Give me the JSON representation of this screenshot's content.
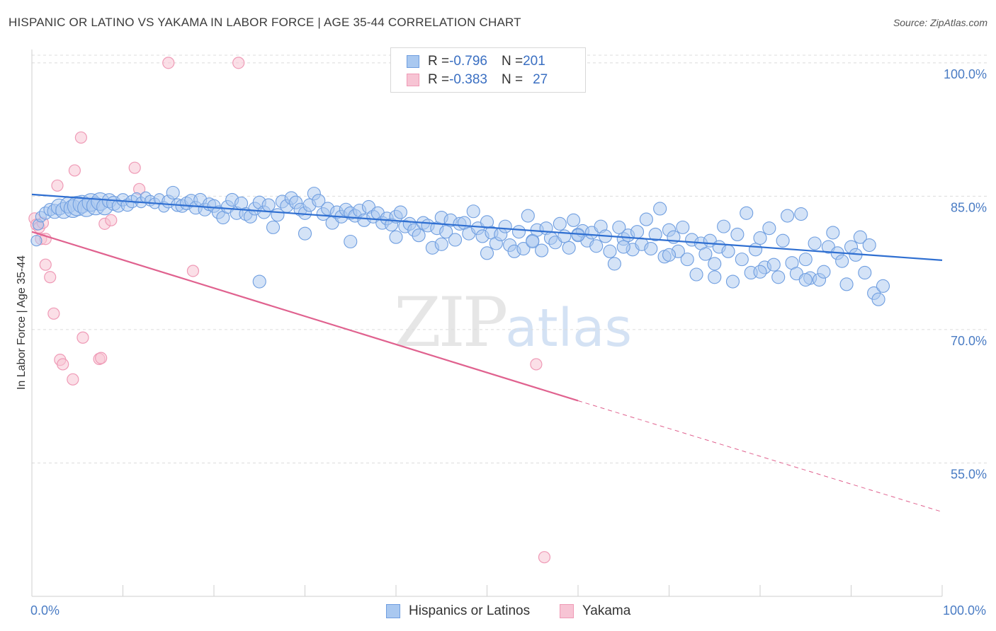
{
  "header": {
    "title": "HISPANIC OR LATINO VS YAKAMA IN LABOR FORCE | AGE 35-44 CORRELATION CHART",
    "source": "Source: ZipAtlas.com"
  },
  "watermark": {
    "zip": "ZIP",
    "atlas": "atlas"
  },
  "legend": {
    "rows": [
      {
        "r_label": "R = ",
        "r_value": "-0.796",
        "n_label": "N = ",
        "n_value": "201"
      },
      {
        "r_label": "R = ",
        "r_value": "-0.383",
        "n_label": "N = ",
        "n_value": "27"
      }
    ]
  },
  "bottom_legend": {
    "series1": "Hispanics or Latinos",
    "series2": "Yakama"
  },
  "colors": {
    "blue_fill": "#a9c8f0",
    "blue_stroke": "#6f9ee0",
    "blue_line": "#2f6fd1",
    "pink_fill": "#f7c4d4",
    "pink_stroke": "#ef9ab6",
    "pink_line": "#e0628f",
    "grid": "#dcdcdc",
    "tick": "#4a7cc4"
  },
  "chart_data": {
    "type": "scatter",
    "title": "HISPANIC OR LATINO VS YAKAMA IN LABOR FORCE | AGE 35-44 CORRELATION CHART",
    "xlabel": "",
    "ylabel": "In Labor Force | Age 35-44",
    "xlim": [
      0,
      100
    ],
    "ylim": [
      40,
      101.5
    ],
    "x_tick_labels": [
      "0.0%",
      "100.0%"
    ],
    "y_ticks": [
      55,
      70,
      85,
      100
    ],
    "y_tick_labels": [
      "55.0%",
      "70.0%",
      "85.0%",
      "100.0%"
    ],
    "grid": true,
    "legend_position": "top-center",
    "series": [
      {
        "name": "Hispanics or Latinos",
        "r": -0.796,
        "n": 201,
        "trend": {
          "x": [
            0,
            100
          ],
          "y": [
            85.2,
            77.8
          ]
        },
        "points": [
          [
            0.5,
            80.0
          ],
          [
            0.7,
            81.8
          ],
          [
            1.0,
            82.7
          ],
          [
            1.5,
            83.1
          ],
          [
            2.0,
            83.5
          ],
          [
            2.5,
            83.3
          ],
          [
            3.0,
            83.8
          ],
          [
            3.5,
            83.4
          ],
          [
            4.0,
            84.0
          ],
          [
            4.5,
            83.6
          ],
          [
            5.0,
            83.9
          ],
          [
            5.5,
            84.1
          ],
          [
            6.0,
            83.7
          ],
          [
            6.5,
            84.3
          ],
          [
            7.0,
            83.9
          ],
          [
            7.5,
            84.4
          ],
          [
            8.0,
            83.8
          ],
          [
            8.5,
            84.5
          ],
          [
            9.0,
            84.2
          ],
          [
            9.5,
            83.9
          ],
          [
            10.0,
            84.6
          ],
          [
            10.5,
            84.0
          ],
          [
            11.0,
            84.4
          ],
          [
            11.5,
            84.8
          ],
          [
            12.0,
            84.3
          ],
          [
            12.5,
            84.9
          ],
          [
            13.0,
            84.5
          ],
          [
            13.5,
            84.2
          ],
          [
            14.0,
            84.7
          ],
          [
            14.5,
            83.8
          ],
          [
            15.0,
            84.4
          ],
          [
            15.5,
            85.4
          ],
          [
            16.0,
            84.0
          ],
          [
            16.5,
            83.9
          ],
          [
            17.0,
            84.2
          ],
          [
            17.5,
            84.5
          ],
          [
            18.0,
            83.7
          ],
          [
            18.5,
            84.6
          ],
          [
            19.0,
            83.5
          ],
          [
            19.5,
            84.1
          ],
          [
            20.0,
            83.9
          ],
          [
            20.5,
            83.2
          ],
          [
            21.0,
            82.6
          ],
          [
            21.5,
            83.8
          ],
          [
            22.0,
            84.6
          ],
          [
            22.5,
            83.1
          ],
          [
            23.0,
            84.2
          ],
          [
            23.5,
            83.0
          ],
          [
            24.0,
            82.7
          ],
          [
            24.5,
            83.6
          ],
          [
            25.0,
            84.3
          ],
          [
            25.5,
            83.2
          ],
          [
            26.0,
            84.0
          ],
          [
            26.5,
            81.5
          ],
          [
            27.0,
            82.9
          ],
          [
            27.5,
            84.4
          ],
          [
            28.0,
            83.9
          ],
          [
            28.5,
            84.8
          ],
          [
            29.0,
            84.3
          ],
          [
            29.5,
            83.5
          ],
          [
            30.0,
            83.1
          ],
          [
            30.5,
            84.0
          ],
          [
            31.0,
            85.3
          ],
          [
            31.5,
            84.5
          ],
          [
            32.0,
            83.0
          ],
          [
            32.5,
            83.6
          ],
          [
            33.0,
            82.0
          ],
          [
            33.5,
            83.2
          ],
          [
            34.0,
            82.7
          ],
          [
            34.5,
            83.5
          ],
          [
            35.0,
            83.1
          ],
          [
            35.5,
            82.8
          ],
          [
            36.0,
            83.4
          ],
          [
            36.5,
            82.3
          ],
          [
            37.0,
            83.8
          ],
          [
            37.5,
            82.7
          ],
          [
            38.0,
            83.1
          ],
          [
            38.5,
            82.0
          ],
          [
            39.0,
            82.5
          ],
          [
            39.5,
            81.8
          ],
          [
            40.0,
            82.7
          ],
          [
            40.5,
            83.2
          ],
          [
            41.0,
            81.6
          ],
          [
            41.5,
            81.9
          ],
          [
            42.0,
            81.2
          ],
          [
            42.5,
            80.6
          ],
          [
            43.0,
            82.0
          ],
          [
            43.5,
            81.7
          ],
          [
            44.0,
            79.2
          ],
          [
            44.5,
            81.4
          ],
          [
            45.0,
            82.6
          ],
          [
            45.5,
            81.0
          ],
          [
            46.0,
            82.3
          ],
          [
            46.5,
            80.1
          ],
          [
            47.0,
            81.9
          ],
          [
            47.5,
            82.0
          ],
          [
            48.0,
            80.8
          ],
          [
            48.5,
            83.3
          ],
          [
            49.0,
            81.4
          ],
          [
            49.5,
            80.5
          ],
          [
            50.0,
            82.1
          ],
          [
            50.5,
            80.9
          ],
          [
            51.0,
            79.7
          ],
          [
            51.5,
            80.7
          ],
          [
            52.0,
            81.6
          ],
          [
            52.5,
            79.5
          ],
          [
            53.0,
            78.8
          ],
          [
            53.5,
            81.0
          ],
          [
            54.0,
            79.1
          ],
          [
            54.5,
            82.8
          ],
          [
            55.0,
            80.0
          ],
          [
            55.5,
            81.2
          ],
          [
            56.0,
            78.9
          ],
          [
            56.5,
            81.4
          ],
          [
            57.0,
            80.3
          ],
          [
            57.5,
            79.8
          ],
          [
            58.0,
            81.9
          ],
          [
            58.5,
            80.5
          ],
          [
            59.0,
            79.2
          ],
          [
            59.5,
            82.3
          ],
          [
            60.0,
            80.7
          ],
          [
            60.5,
            81.1
          ],
          [
            61.0,
            80.0
          ],
          [
            61.5,
            80.9
          ],
          [
            62.0,
            79.4
          ],
          [
            62.5,
            81.6
          ],
          [
            63.0,
            80.5
          ],
          [
            63.5,
            78.8
          ],
          [
            64.0,
            77.4
          ],
          [
            64.5,
            81.5
          ],
          [
            65.0,
            80.2
          ],
          [
            65.5,
            80.6
          ],
          [
            66.0,
            79.0
          ],
          [
            66.5,
            81.0
          ],
          [
            67.0,
            79.6
          ],
          [
            67.5,
            82.4
          ],
          [
            68.0,
            79.1
          ],
          [
            68.5,
            80.7
          ],
          [
            69.0,
            83.6
          ],
          [
            69.5,
            78.2
          ],
          [
            70.0,
            81.2
          ],
          [
            70.5,
            80.4
          ],
          [
            71.0,
            78.8
          ],
          [
            71.5,
            81.5
          ],
          [
            72.0,
            77.9
          ],
          [
            72.5,
            80.1
          ],
          [
            73.0,
            76.2
          ],
          [
            73.5,
            79.7
          ],
          [
            74.0,
            78.5
          ],
          [
            74.5,
            80.0
          ],
          [
            75.0,
            77.4
          ],
          [
            75.5,
            79.3
          ],
          [
            76.0,
            81.6
          ],
          [
            76.5,
            78.8
          ],
          [
            77.0,
            75.4
          ],
          [
            77.5,
            80.7
          ],
          [
            78.0,
            77.9
          ],
          [
            78.5,
            83.1
          ],
          [
            79.0,
            76.4
          ],
          [
            79.5,
            79.0
          ],
          [
            80.0,
            80.3
          ],
          [
            80.5,
            77.0
          ],
          [
            81.0,
            81.4
          ],
          [
            81.5,
            77.3
          ],
          [
            82.0,
            75.9
          ],
          [
            82.5,
            80.0
          ],
          [
            83.0,
            82.8
          ],
          [
            83.5,
            77.5
          ],
          [
            84.0,
            76.3
          ],
          [
            84.5,
            83.0
          ],
          [
            85.0,
            77.9
          ],
          [
            85.5,
            75.8
          ],
          [
            86.0,
            79.7
          ],
          [
            86.5,
            75.6
          ],
          [
            87.0,
            76.5
          ],
          [
            87.5,
            79.3
          ],
          [
            88.0,
            80.9
          ],
          [
            88.5,
            78.6
          ],
          [
            89.0,
            77.7
          ],
          [
            89.5,
            75.1
          ],
          [
            90.0,
            79.3
          ],
          [
            90.5,
            78.4
          ],
          [
            91.0,
            80.4
          ],
          [
            91.5,
            76.4
          ],
          [
            92.0,
            79.5
          ],
          [
            92.5,
            74.1
          ],
          [
            93.0,
            73.4
          ],
          [
            93.5,
            74.9
          ],
          [
            25.0,
            75.4
          ],
          [
            30.0,
            80.8
          ],
          [
            35.0,
            79.9
          ],
          [
            40.0,
            80.4
          ],
          [
            45.0,
            79.6
          ],
          [
            50.0,
            78.6
          ],
          [
            55.0,
            79.9
          ],
          [
            60.0,
            80.6
          ],
          [
            65.0,
            79.3
          ],
          [
            70.0,
            78.4
          ],
          [
            75.0,
            75.9
          ],
          [
            80.0,
            76.5
          ],
          [
            85.0,
            75.6
          ]
        ],
        "sizes": [
          12,
          12,
          12,
          14,
          14,
          16,
          18,
          18,
          18,
          20,
          22,
          20,
          20,
          20,
          20,
          20,
          18,
          16,
          16,
          14,
          14,
          14,
          14,
          12,
          12,
          12,
          12,
          12,
          12,
          12
        ]
      },
      {
        "name": "Yakama",
        "r": -0.383,
        "n": 27,
        "trend_solid": {
          "x": [
            0,
            60
          ],
          "y": [
            81.0,
            62.0
          ]
        },
        "trend_dashed": {
          "x": [
            60,
            100
          ],
          "y": [
            62.0,
            49.5
          ]
        },
        "points": [
          [
            0.3,
            82.5
          ],
          [
            0.5,
            81.8
          ],
          [
            0.8,
            81.5
          ],
          [
            1.0,
            80.2
          ],
          [
            1.2,
            82.0
          ],
          [
            1.5,
            80.2
          ],
          [
            1.5,
            77.3
          ],
          [
            2.0,
            75.9
          ],
          [
            2.4,
            71.8
          ],
          [
            2.8,
            86.2
          ],
          [
            3.1,
            66.6
          ],
          [
            3.4,
            66.1
          ],
          [
            4.5,
            64.4
          ],
          [
            4.7,
            87.9
          ],
          [
            5.4,
            91.6
          ],
          [
            5.6,
            69.1
          ],
          [
            7.4,
            66.7
          ],
          [
            7.6,
            66.8
          ],
          [
            8.0,
            81.9
          ],
          [
            8.7,
            82.3
          ],
          [
            11.3,
            88.2
          ],
          [
            11.8,
            85.8
          ],
          [
            15.0,
            100.0
          ],
          [
            17.7,
            76.6
          ],
          [
            22.7,
            100.0
          ],
          [
            55.4,
            66.1
          ],
          [
            56.3,
            44.4
          ]
        ]
      }
    ]
  }
}
